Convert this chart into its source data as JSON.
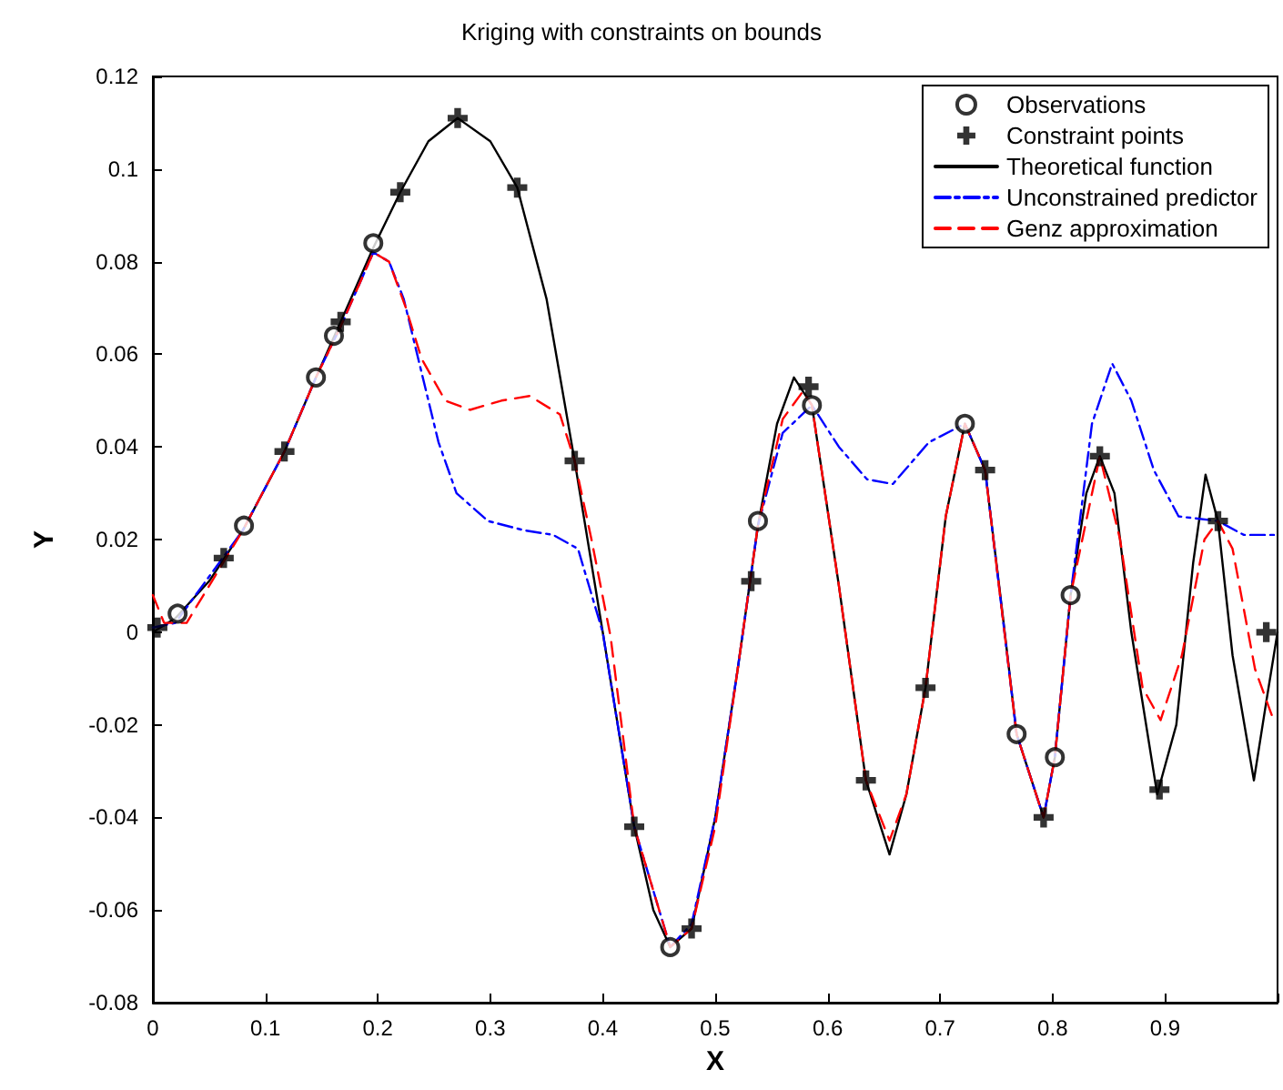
{
  "chart_data": {
    "type": "line",
    "title": "Kriging with constraints on bounds",
    "xlabel": "X",
    "ylabel": "Y",
    "xlim": [
      0,
      1
    ],
    "ylim": [
      -0.08,
      0.12
    ],
    "xticks": [
      0,
      0.1,
      0.2,
      0.3,
      0.4,
      0.5,
      0.6,
      0.7,
      0.8,
      0.9,
      {
        "value": 1,
        "label": null
      }
    ],
    "yticks": [
      -0.08,
      -0.06,
      -0.04,
      -0.02,
      0,
      0.02,
      0.04,
      0.06,
      0.08,
      0.1,
      0.12
    ],
    "grid": false,
    "legend": "top right",
    "series": [
      {
        "name": "Observations",
        "type": "scatter",
        "marker": "circle",
        "color": "#000000",
        "x": [
          0.022,
          0.081,
          0.145,
          0.161,
          0.196,
          0.46,
          0.538,
          0.586,
          0.722,
          0.768,
          0.802,
          0.816
        ],
        "values": [
          0.004,
          0.023,
          0.055,
          0.064,
          0.084,
          -0.068,
          0.024,
          0.049,
          0.045,
          -0.022,
          -0.027,
          0.008
        ]
      },
      {
        "name": "Constraint points",
        "type": "scatter",
        "marker": "cross",
        "color": "#000000",
        "x": [
          0.004,
          0.063,
          0.117,
          0.167,
          0.22,
          0.271,
          0.324,
          0.375,
          0.428,
          0.479,
          0.532,
          0.583,
          0.634,
          0.687,
          0.74,
          0.792,
          0.842,
          0.895,
          0.947,
          0.99
        ],
        "values": [
          0.001,
          0.016,
          0.039,
          0.067,
          0.095,
          0.111,
          0.096,
          0.037,
          -0.042,
          -0.064,
          0.011,
          0.053,
          -0.032,
          -0.012,
          0.035,
          -0.04,
          0.038,
          -0.034,
          0.024,
          0.0
        ]
      },
      {
        "name": "Theoretical function",
        "type": "line",
        "marker": "none",
        "line_style": "solid",
        "color": "#000000",
        "x": [
          0,
          0.02,
          0.05,
          0.08,
          0.117,
          0.145,
          0.167,
          0.196,
          0.22,
          0.245,
          0.271,
          0.3,
          0.324,
          0.35,
          0.375,
          0.4,
          0.428,
          0.445,
          0.46,
          0.479,
          0.5,
          0.52,
          0.538,
          0.555,
          0.57,
          0.586,
          0.61,
          0.634,
          0.655,
          0.67,
          0.687,
          0.705,
          0.722,
          0.74,
          0.755,
          0.768,
          0.792,
          0.802,
          0.816,
          0.83,
          0.842,
          0.855,
          0.87,
          0.893,
          0.91,
          0.925,
          0.936,
          0.947,
          0.96,
          0.979,
          0.99,
          1.0
        ],
        "values": [
          0,
          0.003,
          0.011,
          0.022,
          0.039,
          0.055,
          0.067,
          0.083,
          0.095,
          0.106,
          0.111,
          0.106,
          0.096,
          0.072,
          0.037,
          0.0,
          -0.042,
          -0.06,
          -0.068,
          -0.064,
          -0.04,
          -0.008,
          0.023,
          0.045,
          0.055,
          0.049,
          0.01,
          -0.032,
          -0.048,
          -0.035,
          -0.012,
          0.025,
          0.045,
          0.035,
          0.005,
          -0.022,
          -0.04,
          -0.027,
          0.008,
          0.03,
          0.038,
          0.03,
          0.0,
          -0.035,
          -0.02,
          0.015,
          0.034,
          0.024,
          -0.005,
          -0.032,
          -0.015,
          0.0
        ]
      },
      {
        "name": "Unconstrained predictor",
        "type": "line",
        "marker": "none",
        "line_style": "dashdot",
        "color": "#0000ff",
        "x": [
          0,
          0.02,
          0.05,
          0.08,
          0.117,
          0.145,
          0.167,
          0.196,
          0.21,
          0.223,
          0.24,
          0.254,
          0.27,
          0.298,
          0.33,
          0.356,
          0.378,
          0.4,
          0.428,
          0.46,
          0.479,
          0.5,
          0.52,
          0.538,
          0.56,
          0.586,
          0.61,
          0.635,
          0.658,
          0.69,
          0.722,
          0.74,
          0.768,
          0.792,
          0.802,
          0.816,
          0.835,
          0.853,
          0.87,
          0.89,
          0.912,
          0.947,
          0.97,
          1.0
        ],
        "values": [
          0.001,
          0.002,
          0.012,
          0.022,
          0.039,
          0.055,
          0.066,
          0.082,
          0.08,
          0.072,
          0.055,
          0.041,
          0.03,
          0.024,
          0.022,
          0.021,
          0.018,
          0.0,
          -0.042,
          -0.068,
          -0.063,
          -0.04,
          -0.008,
          0.023,
          0.043,
          0.049,
          0.04,
          0.033,
          0.032,
          0.041,
          0.045,
          0.035,
          -0.022,
          -0.04,
          -0.027,
          0.008,
          0.045,
          0.058,
          0.05,
          0.035,
          0.025,
          0.024,
          0.021,
          0.021
        ]
      },
      {
        "name": "Genz approximation",
        "type": "line",
        "marker": "none",
        "line_style": "dashed",
        "color": "#ff0000",
        "x": [
          0,
          0.01,
          0.03,
          0.06,
          0.08,
          0.117,
          0.145,
          0.167,
          0.196,
          0.21,
          0.225,
          0.239,
          0.26,
          0.282,
          0.31,
          0.335,
          0.362,
          0.375,
          0.39,
          0.407,
          0.428,
          0.46,
          0.479,
          0.5,
          0.52,
          0.538,
          0.56,
          0.578,
          0.586,
          0.61,
          0.634,
          0.655,
          0.67,
          0.687,
          0.705,
          0.722,
          0.74,
          0.768,
          0.792,
          0.802,
          0.816,
          0.842,
          0.86,
          0.88,
          0.896,
          0.915,
          0.935,
          0.947,
          0.96,
          0.98,
          0.995
        ],
        "values": [
          0.008,
          0.002,
          0.002,
          0.014,
          0.022,
          0.039,
          0.055,
          0.066,
          0.082,
          0.08,
          0.07,
          0.059,
          0.05,
          0.048,
          0.05,
          0.051,
          0.047,
          0.037,
          0.02,
          -0.001,
          -0.042,
          -0.068,
          -0.064,
          -0.042,
          -0.008,
          0.023,
          0.046,
          0.052,
          0.049,
          0.01,
          -0.032,
          -0.045,
          -0.035,
          -0.012,
          0.025,
          0.045,
          0.035,
          -0.022,
          -0.04,
          -0.027,
          0.008,
          0.038,
          0.02,
          -0.012,
          -0.019,
          -0.005,
          0.02,
          0.024,
          0.018,
          -0.008,
          -0.018
        ]
      }
    ]
  }
}
